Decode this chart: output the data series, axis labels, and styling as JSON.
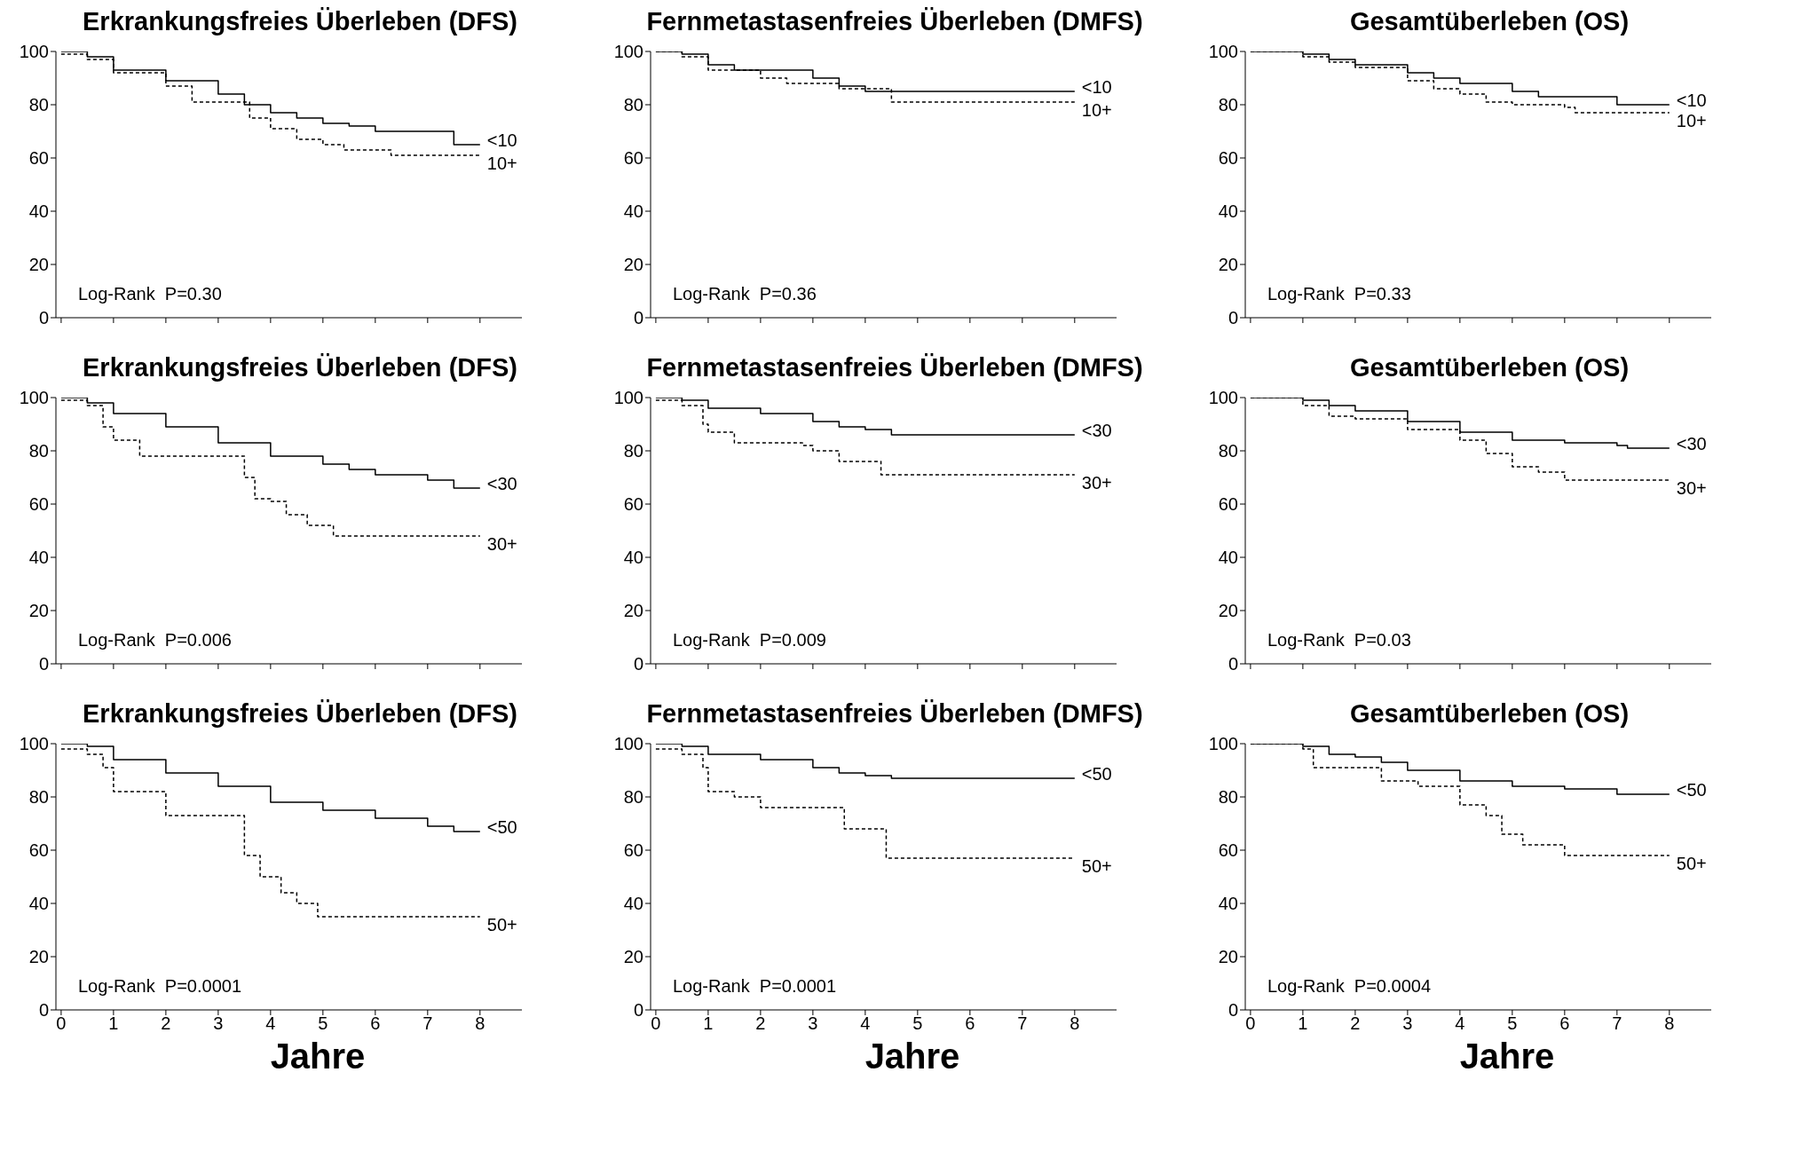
{
  "chart_data": [
    {
      "type": "step",
      "title": "Erkrankungsfreies Überleben (DFS)",
      "annotations": [
        "Log-Rank  P=0.30"
      ],
      "xlim": [
        -0.1,
        8.8
      ],
      "xticks": [
        0,
        1,
        2,
        3,
        4,
        5,
        6,
        7,
        8
      ],
      "ylim": [
        0,
        100
      ],
      "yticks": [
        0,
        20,
        40,
        60,
        80,
        100
      ],
      "tick_labels": "y",
      "grid": false,
      "marker": "none",
      "series": [
        {
          "name": "<10",
          "color": "#000000",
          "line_style": "solid",
          "x": [
            0,
            0.5,
            1,
            2,
            3,
            3.5,
            4,
            4.5,
            5,
            5.5,
            6,
            7,
            7.5,
            8
          ],
          "values": [
            100,
            98,
            93,
            89,
            84,
            80,
            77,
            75,
            73,
            72,
            70,
            70,
            65,
            65
          ]
        },
        {
          "name": "10+",
          "color": "#000000",
          "line_style": "dashed",
          "x": [
            0,
            0.5,
            1,
            2,
            2.5,
            3.3,
            3.6,
            4,
            4.5,
            5,
            5.4,
            6.3,
            8
          ],
          "values": [
            99,
            97,
            92,
            87,
            81,
            81,
            75,
            71,
            67,
            65,
            63,
            61,
            61
          ]
        }
      ]
    },
    {
      "type": "step",
      "title": "Fernmetastasenfreies Überleben (DMFS)",
      "annotations": [
        "Log-Rank  P=0.36"
      ],
      "xlim": [
        -0.1,
        8.8
      ],
      "xticks": [
        0,
        1,
        2,
        3,
        4,
        5,
        6,
        7,
        8
      ],
      "ylim": [
        0,
        100
      ],
      "yticks": [
        0,
        20,
        40,
        60,
        80,
        100
      ],
      "tick_labels": "y",
      "grid": false,
      "marker": "none",
      "series": [
        {
          "name": "<10",
          "color": "#000000",
          "line_style": "solid",
          "x": [
            0,
            0.5,
            1,
            1.5,
            2.5,
            3,
            3.5,
            4,
            8
          ],
          "values": [
            100,
            99,
            95,
            93,
            93,
            90,
            87,
            85,
            85
          ]
        },
        {
          "name": "10+",
          "color": "#000000",
          "line_style": "dashed",
          "x": [
            0,
            0.5,
            1,
            2,
            2.5,
            3.5,
            4.5,
            8
          ],
          "values": [
            100,
            98,
            93,
            90,
            88,
            86,
            81,
            81
          ]
        }
      ]
    },
    {
      "type": "step",
      "title": "Gesamtüberleben (OS)",
      "annotations": [
        "Log-Rank  P=0.33"
      ],
      "xlim": [
        -0.1,
        8.8
      ],
      "xticks": [
        0,
        1,
        2,
        3,
        4,
        5,
        6,
        7,
        8
      ],
      "ylim": [
        0,
        100
      ],
      "yticks": [
        0,
        20,
        40,
        60,
        80,
        100
      ],
      "tick_labels": "y",
      "grid": false,
      "marker": "none",
      "series": [
        {
          "name": "<10",
          "color": "#000000",
          "line_style": "solid",
          "x": [
            0,
            1,
            1.5,
            2,
            3,
            3.5,
            4,
            5,
            5.5,
            6,
            7,
            8
          ],
          "values": [
            100,
            99,
            97,
            95,
            92,
            90,
            88,
            85,
            83,
            83,
            80,
            80
          ]
        },
        {
          "name": "10+",
          "color": "#000000",
          "line_style": "dashed",
          "x": [
            0,
            1,
            1.5,
            2,
            3,
            3.5,
            4,
            4.5,
            5,
            6,
            6.2,
            8
          ],
          "values": [
            100,
            98,
            96,
            94,
            89,
            86,
            84,
            81,
            80,
            79,
            77,
            77
          ]
        }
      ]
    },
    {
      "type": "step",
      "title": "Erkrankungsfreies Überleben (DFS)",
      "annotations": [
        "Log-Rank  P=0.006"
      ],
      "xlim": [
        -0.1,
        8.8
      ],
      "xticks": [
        0,
        1,
        2,
        3,
        4,
        5,
        6,
        7,
        8
      ],
      "ylim": [
        0,
        100
      ],
      "yticks": [
        0,
        20,
        40,
        60,
        80,
        100
      ],
      "tick_labels": "y",
      "grid": false,
      "marker": "none",
      "series": [
        {
          "name": "<30",
          "color": "#000000",
          "line_style": "solid",
          "x": [
            0,
            0.5,
            1,
            2,
            3,
            4,
            5,
            5.5,
            6,
            7,
            7.5,
            8
          ],
          "values": [
            100,
            98,
            94,
            89,
            83,
            78,
            75,
            73,
            71,
            69,
            66,
            66
          ]
        },
        {
          "name": "30+",
          "color": "#000000",
          "line_style": "dashed",
          "x": [
            0,
            0.5,
            0.8,
            1,
            1.5,
            3.3,
            3.5,
            3.7,
            4,
            4.3,
            4.7,
            5.2,
            8
          ],
          "values": [
            99,
            97,
            89,
            84,
            78,
            78,
            70,
            62,
            61,
            56,
            52,
            48,
            48
          ]
        }
      ]
    },
    {
      "type": "step",
      "title": "Fernmetastasenfreies Überleben (DMFS)",
      "annotations": [
        "Log-Rank  P=0.009"
      ],
      "xlim": [
        -0.1,
        8.8
      ],
      "xticks": [
        0,
        1,
        2,
        3,
        4,
        5,
        6,
        7,
        8
      ],
      "ylim": [
        0,
        100
      ],
      "yticks": [
        0,
        20,
        40,
        60,
        80,
        100
      ],
      "tick_labels": "y",
      "grid": false,
      "marker": "none",
      "series": [
        {
          "name": "<30",
          "color": "#000000",
          "line_style": "solid",
          "x": [
            0,
            0.5,
            1,
            2,
            3,
            3.5,
            4,
            4.5,
            8
          ],
          "values": [
            100,
            99,
            96,
            94,
            91,
            89,
            88,
            86,
            86
          ]
        },
        {
          "name": "30+",
          "color": "#000000",
          "line_style": "dashed",
          "x": [
            0,
            0.5,
            0.9,
            1,
            1.5,
            2.8,
            3,
            3.5,
            4.3,
            8
          ],
          "values": [
            99,
            97,
            90,
            87,
            83,
            82,
            80,
            76,
            71,
            71
          ]
        }
      ]
    },
    {
      "type": "step",
      "title": "Gesamtüberleben (OS)",
      "annotations": [
        "Log-Rank  P=0.03"
      ],
      "xlim": [
        -0.1,
        8.8
      ],
      "xticks": [
        0,
        1,
        2,
        3,
        4,
        5,
        6,
        7,
        8
      ],
      "ylim": [
        0,
        100
      ],
      "yticks": [
        0,
        20,
        40,
        60,
        80,
        100
      ],
      "tick_labels": "y",
      "grid": false,
      "marker": "none",
      "series": [
        {
          "name": "<30",
          "color": "#000000",
          "line_style": "solid",
          "x": [
            0,
            1,
            1.5,
            2,
            3,
            4,
            5,
            6,
            7,
            7.2,
            8
          ],
          "values": [
            100,
            99,
            97,
            95,
            91,
            87,
            84,
            83,
            82,
            81,
            81
          ]
        },
        {
          "name": "30+",
          "color": "#000000",
          "line_style": "dashed",
          "x": [
            0,
            1,
            1.5,
            2,
            3,
            4,
            4.5,
            5,
            5.5,
            6,
            8
          ],
          "values": [
            100,
            97,
            93,
            92,
            88,
            84,
            79,
            74,
            72,
            69,
            69
          ]
        }
      ]
    },
    {
      "type": "step",
      "title": "Erkrankungsfreies Überleben (DFS)",
      "xlabel": "Jahre",
      "annotations": [
        "Log-Rank  P=0.0001"
      ],
      "xlim": [
        -0.1,
        8.8
      ],
      "xticks": [
        0,
        1,
        2,
        3,
        4,
        5,
        6,
        7,
        8
      ],
      "ylim": [
        0,
        100
      ],
      "yticks": [
        0,
        20,
        40,
        60,
        80,
        100
      ],
      "grid": false,
      "marker": "none",
      "series": [
        {
          "name": "<50",
          "color": "#000000",
          "line_style": "solid",
          "x": [
            0,
            0.5,
            1,
            2,
            3,
            4,
            5,
            6,
            7,
            7.5,
            8
          ],
          "values": [
            100,
            99,
            94,
            89,
            84,
            78,
            75,
            72,
            69,
            67,
            67
          ]
        },
        {
          "name": "50+",
          "color": "#000000",
          "line_style": "dashed",
          "x": [
            0,
            0.5,
            0.8,
            1,
            1.5,
            2,
            3.3,
            3.5,
            3.8,
            4.2,
            4.5,
            4.9,
            8
          ],
          "values": [
            98,
            96,
            91,
            82,
            82,
            73,
            73,
            58,
            50,
            44,
            40,
            35,
            35
          ]
        }
      ]
    },
    {
      "type": "step",
      "title": "Fernmetastasenfreies Überleben (DMFS)",
      "xlabel": "Jahre",
      "annotations": [
        "Log-Rank  P=0.0001"
      ],
      "xlim": [
        -0.1,
        8.8
      ],
      "xticks": [
        0,
        1,
        2,
        3,
        4,
        5,
        6,
        7,
        8
      ],
      "ylim": [
        0,
        100
      ],
      "yticks": [
        0,
        20,
        40,
        60,
        80,
        100
      ],
      "grid": false,
      "marker": "none",
      "series": [
        {
          "name": "<50",
          "color": "#000000",
          "line_style": "solid",
          "x": [
            0,
            0.5,
            1,
            2,
            3,
            3.5,
            4,
            4.5,
            8
          ],
          "values": [
            100,
            99,
            96,
            94,
            91,
            89,
            88,
            87,
            87
          ]
        },
        {
          "name": "50+",
          "color": "#000000",
          "line_style": "dashed",
          "x": [
            0,
            0.5,
            0.9,
            1,
            1.5,
            2,
            3.5,
            3.6,
            4.3,
            4.4,
            8
          ],
          "values": [
            98,
            96,
            91,
            82,
            80,
            76,
            76,
            68,
            68,
            57,
            57
          ]
        }
      ]
    },
    {
      "type": "step",
      "title": "Gesamtüberleben (OS)",
      "xlabel": "Jahre",
      "annotations": [
        "Log-Rank  P=0.0004"
      ],
      "xlim": [
        -0.1,
        8.8
      ],
      "xticks": [
        0,
        1,
        2,
        3,
        4,
        5,
        6,
        7,
        8
      ],
      "ylim": [
        0,
        100
      ],
      "yticks": [
        0,
        20,
        40,
        60,
        80,
        100
      ],
      "grid": false,
      "marker": "none",
      "series": [
        {
          "name": "<50",
          "color": "#000000",
          "line_style": "solid",
          "x": [
            0,
            1,
            1.5,
            2,
            2.5,
            3,
            4,
            5,
            6,
            7,
            8
          ],
          "values": [
            100,
            99,
            96,
            95,
            93,
            90,
            86,
            84,
            83,
            81,
            81
          ]
        },
        {
          "name": "50+",
          "color": "#000000",
          "line_style": "dashed",
          "x": [
            0,
            1,
            1.2,
            2,
            2.5,
            3.2,
            4,
            4.5,
            4.8,
            5.2,
            6,
            8
          ],
          "values": [
            100,
            98,
            91,
            91,
            86,
            84,
            77,
            73,
            66,
            62,
            58,
            58
          ]
        }
      ]
    }
  ]
}
